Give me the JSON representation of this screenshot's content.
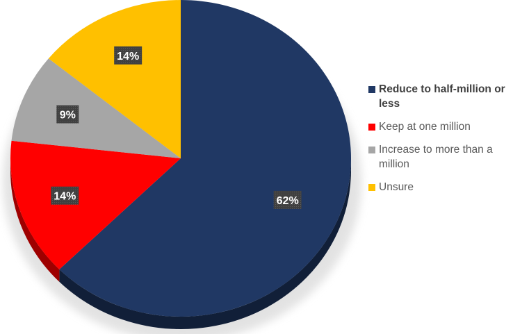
{
  "chart_data": {
    "type": "pie",
    "style": "3d",
    "title": "",
    "slices": [
      {
        "label": "Reduce to half-million or less",
        "value": 62,
        "display": "62%",
        "color": "#203864",
        "side_color": "#111f38"
      },
      {
        "label": "Keep at one million",
        "value": 14,
        "display": "14%",
        "color": "#ff0000",
        "side_color": "#9e0000"
      },
      {
        "label": "Increase to more than a million",
        "value": 9,
        "display": "9%",
        "color": "#a6a6a6",
        "side_color": "#6e6e6e"
      },
      {
        "label": "Unsure",
        "value": 14,
        "display": "14%",
        "color": "#ffc000",
        "side_color": "#b38600"
      }
    ],
    "legend": {
      "position": "right",
      "items": [
        {
          "label": "Reduce to half-million or less",
          "color": "#203864",
          "bold": true
        },
        {
          "label": "Keep at one million",
          "color": "#ff0000",
          "bold": false
        },
        {
          "label": "Increase to more than a million",
          "color": "#a6a6a6",
          "bold": false
        },
        {
          "label": "Unsure",
          "color": "#ffc000",
          "bold": false
        }
      ]
    },
    "data_label_style": {
      "background": "#404040",
      "text_color": "#ffffff"
    }
  }
}
